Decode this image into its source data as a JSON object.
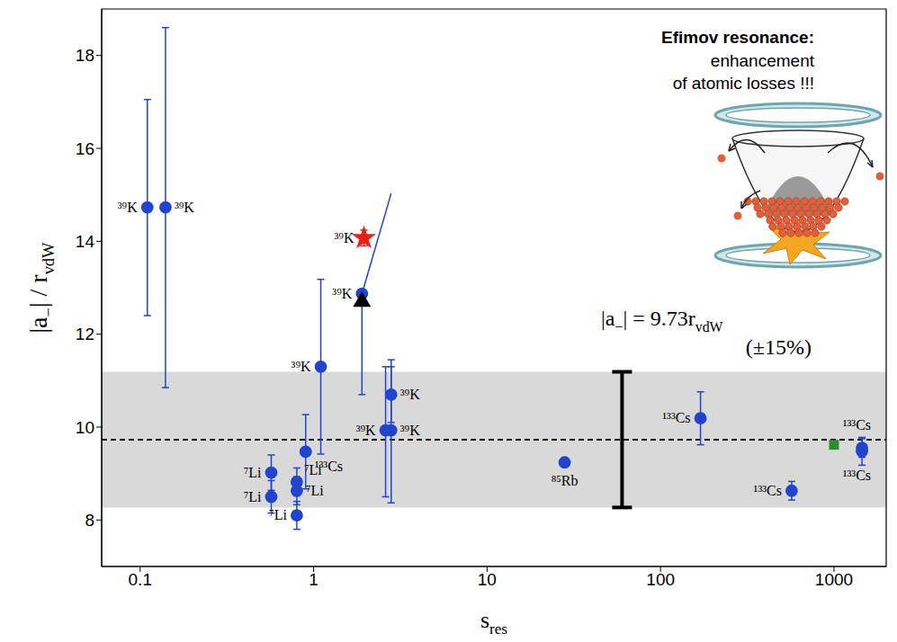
{
  "chart_data": {
    "type": "scatter",
    "title": "Efimov resonance:",
    "subtitle": [
      "enhancement",
      "of atomic losses !!!"
    ],
    "xlabel": [
      {
        "text": "s"
      },
      {
        "text": "res",
        "sub": true
      }
    ],
    "ylabel": [
      {
        "text": "|a"
      },
      {
        "text": "−",
        "sub": true
      },
      {
        "text": "| / r"
      },
      {
        "text": "vdW",
        "sub": true
      }
    ],
    "annotations": [
      [
        {
          "text": "|a"
        },
        {
          "text": "−",
          "sub": true
        },
        {
          "text": "| = 9.73r"
        },
        {
          "text": "vdW",
          "sub": true
        }
      ],
      [
        {
          "text": "(±15%)"
        }
      ]
    ],
    "log": "x",
    "xlim": [
      0.06,
      2000
    ],
    "xticks": [
      0.1,
      1,
      10,
      100,
      1000
    ],
    "ylim": [
      7,
      19
    ],
    "yticks": [
      8,
      10,
      12,
      14,
      16,
      18
    ],
    "band": {
      "y": [
        8.27,
        11.19
      ],
      "color": "#d9d9d9"
    },
    "mean": {
      "y": 9.73,
      "line_style": "dashed",
      "color": "#000000"
    },
    "spread": {
      "x": 60,
      "y": 9.73,
      "err": [
        1.46,
        1.46
      ],
      "color": "#000000"
    },
    "lines": [
      {
        "x": [
          1.9,
          2.8
        ],
        "y": [
          12.87,
          15.03
        ],
        "color": "#2244cc"
      }
    ],
    "series": [
      {
        "color": "#2244cc",
        "marker": "circle",
        "points": [
          {
            "x": 0.11,
            "y": 14.73,
            "err": [
              2.33,
              2.32
            ],
            "label": "³⁹K"
          },
          {
            "x": 0.14,
            "y": 14.73,
            "err": [
              3.88,
              3.87
            ],
            "label": "³⁹K"
          },
          {
            "x": 1.1,
            "y": 11.3,
            "err": [
              1.88,
              1.88
            ],
            "label": "³⁹K"
          },
          {
            "x": 1.9,
            "y": 12.87,
            "err": [
              2.17,
              0
            ],
            "label": "³⁹K"
          },
          {
            "x": 2.6,
            "y": 9.93,
            "err": [
              1.43,
              1.37
            ],
            "label": "³⁹K"
          },
          {
            "x": 2.8,
            "y": 9.93,
            "err": [
              1.56,
              1.52
            ],
            "label": "³⁹K"
          },
          {
            "x": 2.8,
            "y": 10.7,
            "err": [
              0.6,
              0.6
            ],
            "label": "³⁹K"
          },
          {
            "x": 0.9,
            "y": 9.47,
            "err": [
              0.8,
              0.8
            ],
            "label": "¹³³Cs"
          },
          {
            "x": 0.57,
            "y": 9.02,
            "err": [
              0.38,
              0.38
            ],
            "label": "⁷Li"
          },
          {
            "x": 0.57,
            "y": 8.5,
            "err": [
              0.35,
              0.35
            ],
            "label": "⁷Li"
          },
          {
            "x": 0.8,
            "y": 8.82,
            "err": [
              0.3,
              0.3
            ],
            "label": "⁷Li"
          },
          {
            "x": 0.8,
            "y": 8.63,
            "err": [
              0.3,
              0.3
            ],
            "label": "⁷Li"
          },
          {
            "x": 0.8,
            "y": 8.1,
            "err": [
              0.3,
              0.3
            ],
            "label": "⁷Li"
          },
          {
            "x": 28,
            "y": 9.24,
            "label": "⁸⁵Rb"
          },
          {
            "x": 170,
            "y": 10.19,
            "err": [
              0.57,
              0.57
            ],
            "label": "¹³³Cs"
          },
          {
            "x": 570,
            "y": 8.63,
            "err": [
              0.2,
              0.2
            ],
            "label": "¹³³Cs"
          },
          {
            "x": 1450,
            "y": 9.48,
            "err": [
              0.3,
              0.3
            ],
            "label": "¹³³Cs"
          },
          {
            "x": 1450,
            "y": 9.55,
            "err": [
              0.2,
              0.2
            ],
            "label": "¹³³Cs"
          }
        ]
      },
      {
        "color": "#e8201a",
        "marker": "star",
        "points": [
          {
            "x": 1.95,
            "y": 14.07,
            "err": [
              0.17,
              0.17
            ],
            "label": "³⁹K"
          }
        ]
      },
      {
        "color": "#000000",
        "marker": "triangle",
        "points": [
          {
            "x": 1.9,
            "y": 12.7
          }
        ]
      },
      {
        "color": "#2e8b2e",
        "marker": "square",
        "points": [
          {
            "x": 1000,
            "y": 9.62
          }
        ]
      }
    ]
  }
}
